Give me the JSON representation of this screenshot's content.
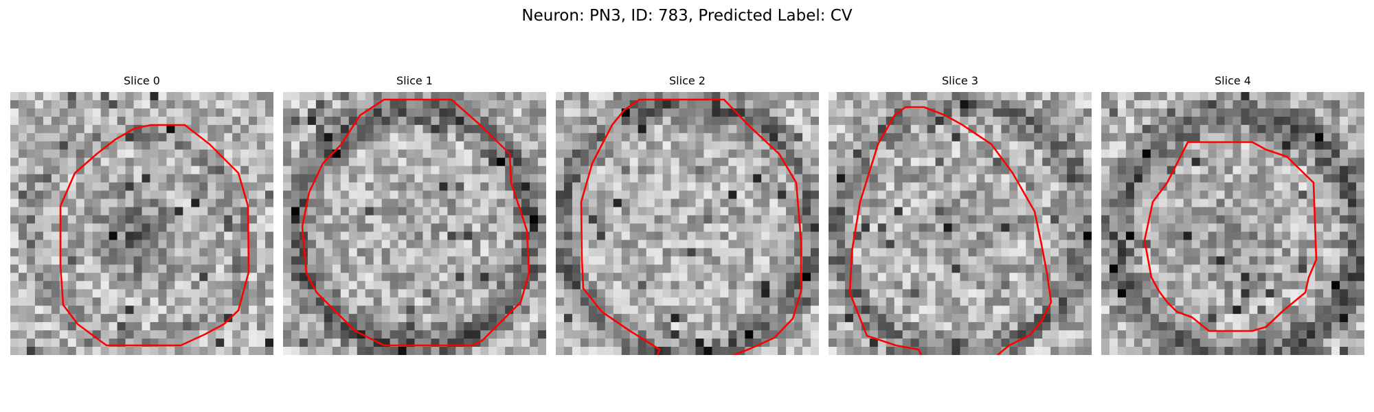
{
  "figure": {
    "title": "Neuron: PN3, ID: 783, Predicted Label: CV"
  },
  "panels": [
    {
      "title": "Slice 0"
    },
    {
      "title": "Slice 1"
    },
    {
      "title": "Slice 2"
    },
    {
      "title": "Slice 3"
    },
    {
      "title": "Slice 4"
    }
  ],
  "colors": {
    "contour": "#ff0000",
    "background": "#ffffff"
  }
}
